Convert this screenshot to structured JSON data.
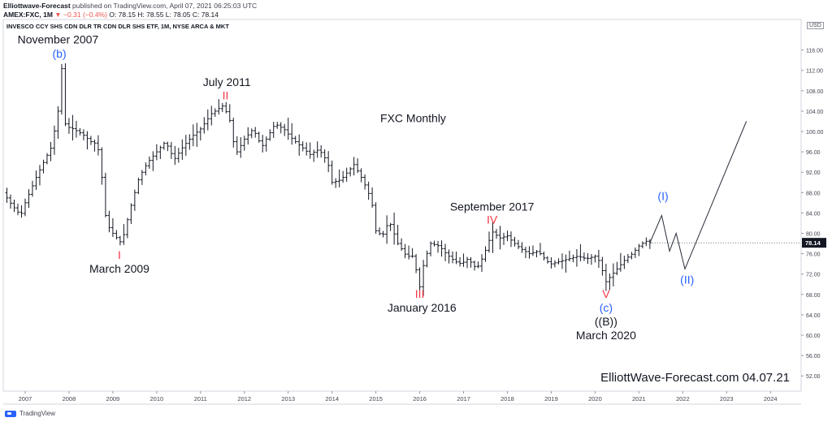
{
  "header": {
    "publisher": "Elliottwave-Forecast",
    "published": "published on TradingView.com, April 07, 2021 06:25:03 UTC",
    "symbol": "AMEX:FXC, 1M",
    "change": "▼ −0.31 (−0.4%)",
    "ohlc": "O: 78.15  H: 78.55  L: 78.05  C: 78.14"
  },
  "footer": {
    "brand": "TradingView"
  },
  "chart_data": {
    "type": "line",
    "subtype": "ohlc-bars",
    "title": "FXC Monthly",
    "instrument_label": "INVESCO CCY SHS CDN DLR TR CDN DLR SHS ETF, 1M, NYSE ARCA & MKT",
    "watermark": "ElliottWave-Forecast.com 04.07.21",
    "currency": "USD",
    "last_price": "78.14",
    "xlim": [
      2006.5,
      2024.7
    ],
    "ylim": [
      49,
      122
    ],
    "x_ticks": [
      "2007",
      "2008",
      "2009",
      "2010",
      "2011",
      "2012",
      "2013",
      "2014",
      "2015",
      "2016",
      "2017",
      "2018",
      "2019",
      "2020",
      "2021",
      "2022",
      "2023",
      "2024"
    ],
    "y_ticks": [
      "52.00",
      "56.00",
      "60.00",
      "64.00",
      "68.00",
      "72.00",
      "76.00",
      "80.00",
      "84.00",
      "88.00",
      "92.00",
      "96.00",
      "100.00",
      "104.00",
      "108.00",
      "112.00",
      "116.00"
    ],
    "price_path": [
      [
        2006.0,
        89.5
      ],
      [
        2006.25,
        90.5
      ],
      [
        2006.5,
        88.0
      ],
      [
        2006.7,
        85.5
      ],
      [
        2006.9,
        83.5
      ],
      [
        2007.0,
        86.0
      ],
      [
        2007.25,
        91.0
      ],
      [
        2007.45,
        94.5
      ],
      [
        2007.6,
        97.0
      ],
      [
        2007.75,
        104.0
      ],
      [
        2007.84,
        113.0
      ],
      [
        2007.92,
        101.0
      ],
      [
        2008.1,
        100.5
      ],
      [
        2008.3,
        99.5
      ],
      [
        2008.5,
        98.0
      ],
      [
        2008.65,
        97.5
      ],
      [
        2008.75,
        91.0
      ],
      [
        2008.85,
        82.0
      ],
      [
        2009.0,
        80.0
      ],
      [
        2009.2,
        78.0
      ],
      [
        2009.4,
        85.0
      ],
      [
        2009.6,
        91.0
      ],
      [
        2009.8,
        94.0
      ],
      [
        2010.0,
        96.0
      ],
      [
        2010.2,
        98.0
      ],
      [
        2010.4,
        94.5
      ],
      [
        2010.6,
        97.0
      ],
      [
        2010.8,
        99.0
      ],
      [
        2011.0,
        100.5
      ],
      [
        2011.25,
        103.5
      ],
      [
        2011.5,
        105.0
      ],
      [
        2011.65,
        103.0
      ],
      [
        2011.8,
        95.5
      ],
      [
        2012.0,
        98.5
      ],
      [
        2012.2,
        100.5
      ],
      [
        2012.4,
        97.0
      ],
      [
        2012.7,
        101.5
      ],
      [
        2012.9,
        100.5
      ],
      [
        2013.1,
        98.5
      ],
      [
        2013.3,
        97.0
      ],
      [
        2013.5,
        95.5
      ],
      [
        2013.7,
        96.5
      ],
      [
        2013.9,
        94.0
      ],
      [
        2014.0,
        90.0
      ],
      [
        2014.2,
        90.5
      ],
      [
        2014.4,
        92.5
      ],
      [
        2014.5,
        93.5
      ],
      [
        2014.7,
        90.5
      ],
      [
        2014.9,
        86.5
      ],
      [
        2015.0,
        80.5
      ],
      [
        2015.15,
        79.5
      ],
      [
        2015.3,
        82.5
      ],
      [
        2015.5,
        78.0
      ],
      [
        2015.7,
        75.5
      ],
      [
        2015.85,
        75.5
      ],
      [
        2016.0,
        69.5
      ],
      [
        2016.1,
        74.5
      ],
      [
        2016.25,
        78.0
      ],
      [
        2016.45,
        77.5
      ],
      [
        2016.6,
        76.0
      ],
      [
        2016.8,
        74.5
      ],
      [
        2016.95,
        74.0
      ],
      [
        2017.1,
        75.0
      ],
      [
        2017.3,
        73.0
      ],
      [
        2017.45,
        75.5
      ],
      [
        2017.6,
        79.0
      ],
      [
        2017.68,
        80.5
      ],
      [
        2017.8,
        79.0
      ],
      [
        2018.0,
        79.5
      ],
      [
        2018.1,
        78.5
      ],
      [
        2018.3,
        77.0
      ],
      [
        2018.5,
        76.0
      ],
      [
        2018.7,
        76.5
      ],
      [
        2018.9,
        74.5
      ],
      [
        2019.0,
        74.0
      ],
      [
        2019.2,
        74.5
      ],
      [
        2019.4,
        75.0
      ],
      [
        2019.6,
        75.5
      ],
      [
        2019.8,
        75.0
      ],
      [
        2020.0,
        75.5
      ],
      [
        2020.15,
        74.0
      ],
      [
        2020.2,
        70.0
      ],
      [
        2020.35,
        71.5
      ],
      [
        2020.5,
        73.0
      ],
      [
        2020.7,
        75.0
      ],
      [
        2020.85,
        76.0
      ],
      [
        2021.0,
        77.5
      ],
      [
        2021.15,
        78.5
      ],
      [
        2021.25,
        78.14
      ]
    ],
    "projection": [
      [
        2021.25,
        78.14
      ],
      [
        2021.52,
        83.5
      ],
      [
        2021.7,
        76.5
      ],
      [
        2021.85,
        80.0
      ],
      [
        2022.05,
        73.0
      ],
      [
        2023.45,
        102.0
      ]
    ],
    "annotations": [
      {
        "text": "November 2007",
        "x": 2007.75,
        "y": 117.3,
        "color": "#131722",
        "size": 14
      },
      {
        "text": "(b)",
        "x": 2007.78,
        "y": 114.5,
        "color": "#2962ff",
        "size": 14
      },
      {
        "text": "July 2011",
        "x": 2011.6,
        "y": 108.9,
        "color": "#131722",
        "size": 14
      },
      {
        "text": "II",
        "x": 2011.57,
        "y": 106.3,
        "color": "#f23645",
        "size": 14
      },
      {
        "text": "FXC Monthly",
        "x": 2015.85,
        "y": 101.8,
        "color": "#131722",
        "size": 14
      },
      {
        "text": "September 2017",
        "x": 2017.65,
        "y": 84.5,
        "color": "#131722",
        "size": 14
      },
      {
        "text": "IV",
        "x": 2017.65,
        "y": 81.9,
        "color": "#f23645",
        "size": 14
      },
      {
        "text": "I",
        "x": 2009.15,
        "y": 75.0,
        "color": "#f23645",
        "size": 14
      },
      {
        "text": "March 2009",
        "x": 2009.15,
        "y": 72.3,
        "color": "#131722",
        "size": 14
      },
      {
        "text": "III",
        "x": 2016.0,
        "y": 67.3,
        "color": "#f23645",
        "size": 14
      },
      {
        "text": "January 2016",
        "x": 2016.05,
        "y": 64.6,
        "color": "#131722",
        "size": 14
      },
      {
        "text": "V",
        "x": 2020.25,
        "y": 67.3,
        "color": "#f23645",
        "size": 14
      },
      {
        "text": "(c)",
        "x": 2020.25,
        "y": 64.6,
        "color": "#2962ff",
        "size": 14
      },
      {
        "text": "((B))",
        "x": 2020.25,
        "y": 61.9,
        "color": "#131722",
        "size": 14
      },
      {
        "text": "March 2020",
        "x": 2020.25,
        "y": 59.2,
        "color": "#131722",
        "size": 14
      },
      {
        "text": "(I)",
        "x": 2021.55,
        "y": 86.5,
        "color": "#2962ff",
        "size": 14
      },
      {
        "text": "(II)",
        "x": 2022.1,
        "y": 70.1,
        "color": "#2962ff",
        "size": 14
      }
    ],
    "grid": false,
    "legend": "none"
  }
}
